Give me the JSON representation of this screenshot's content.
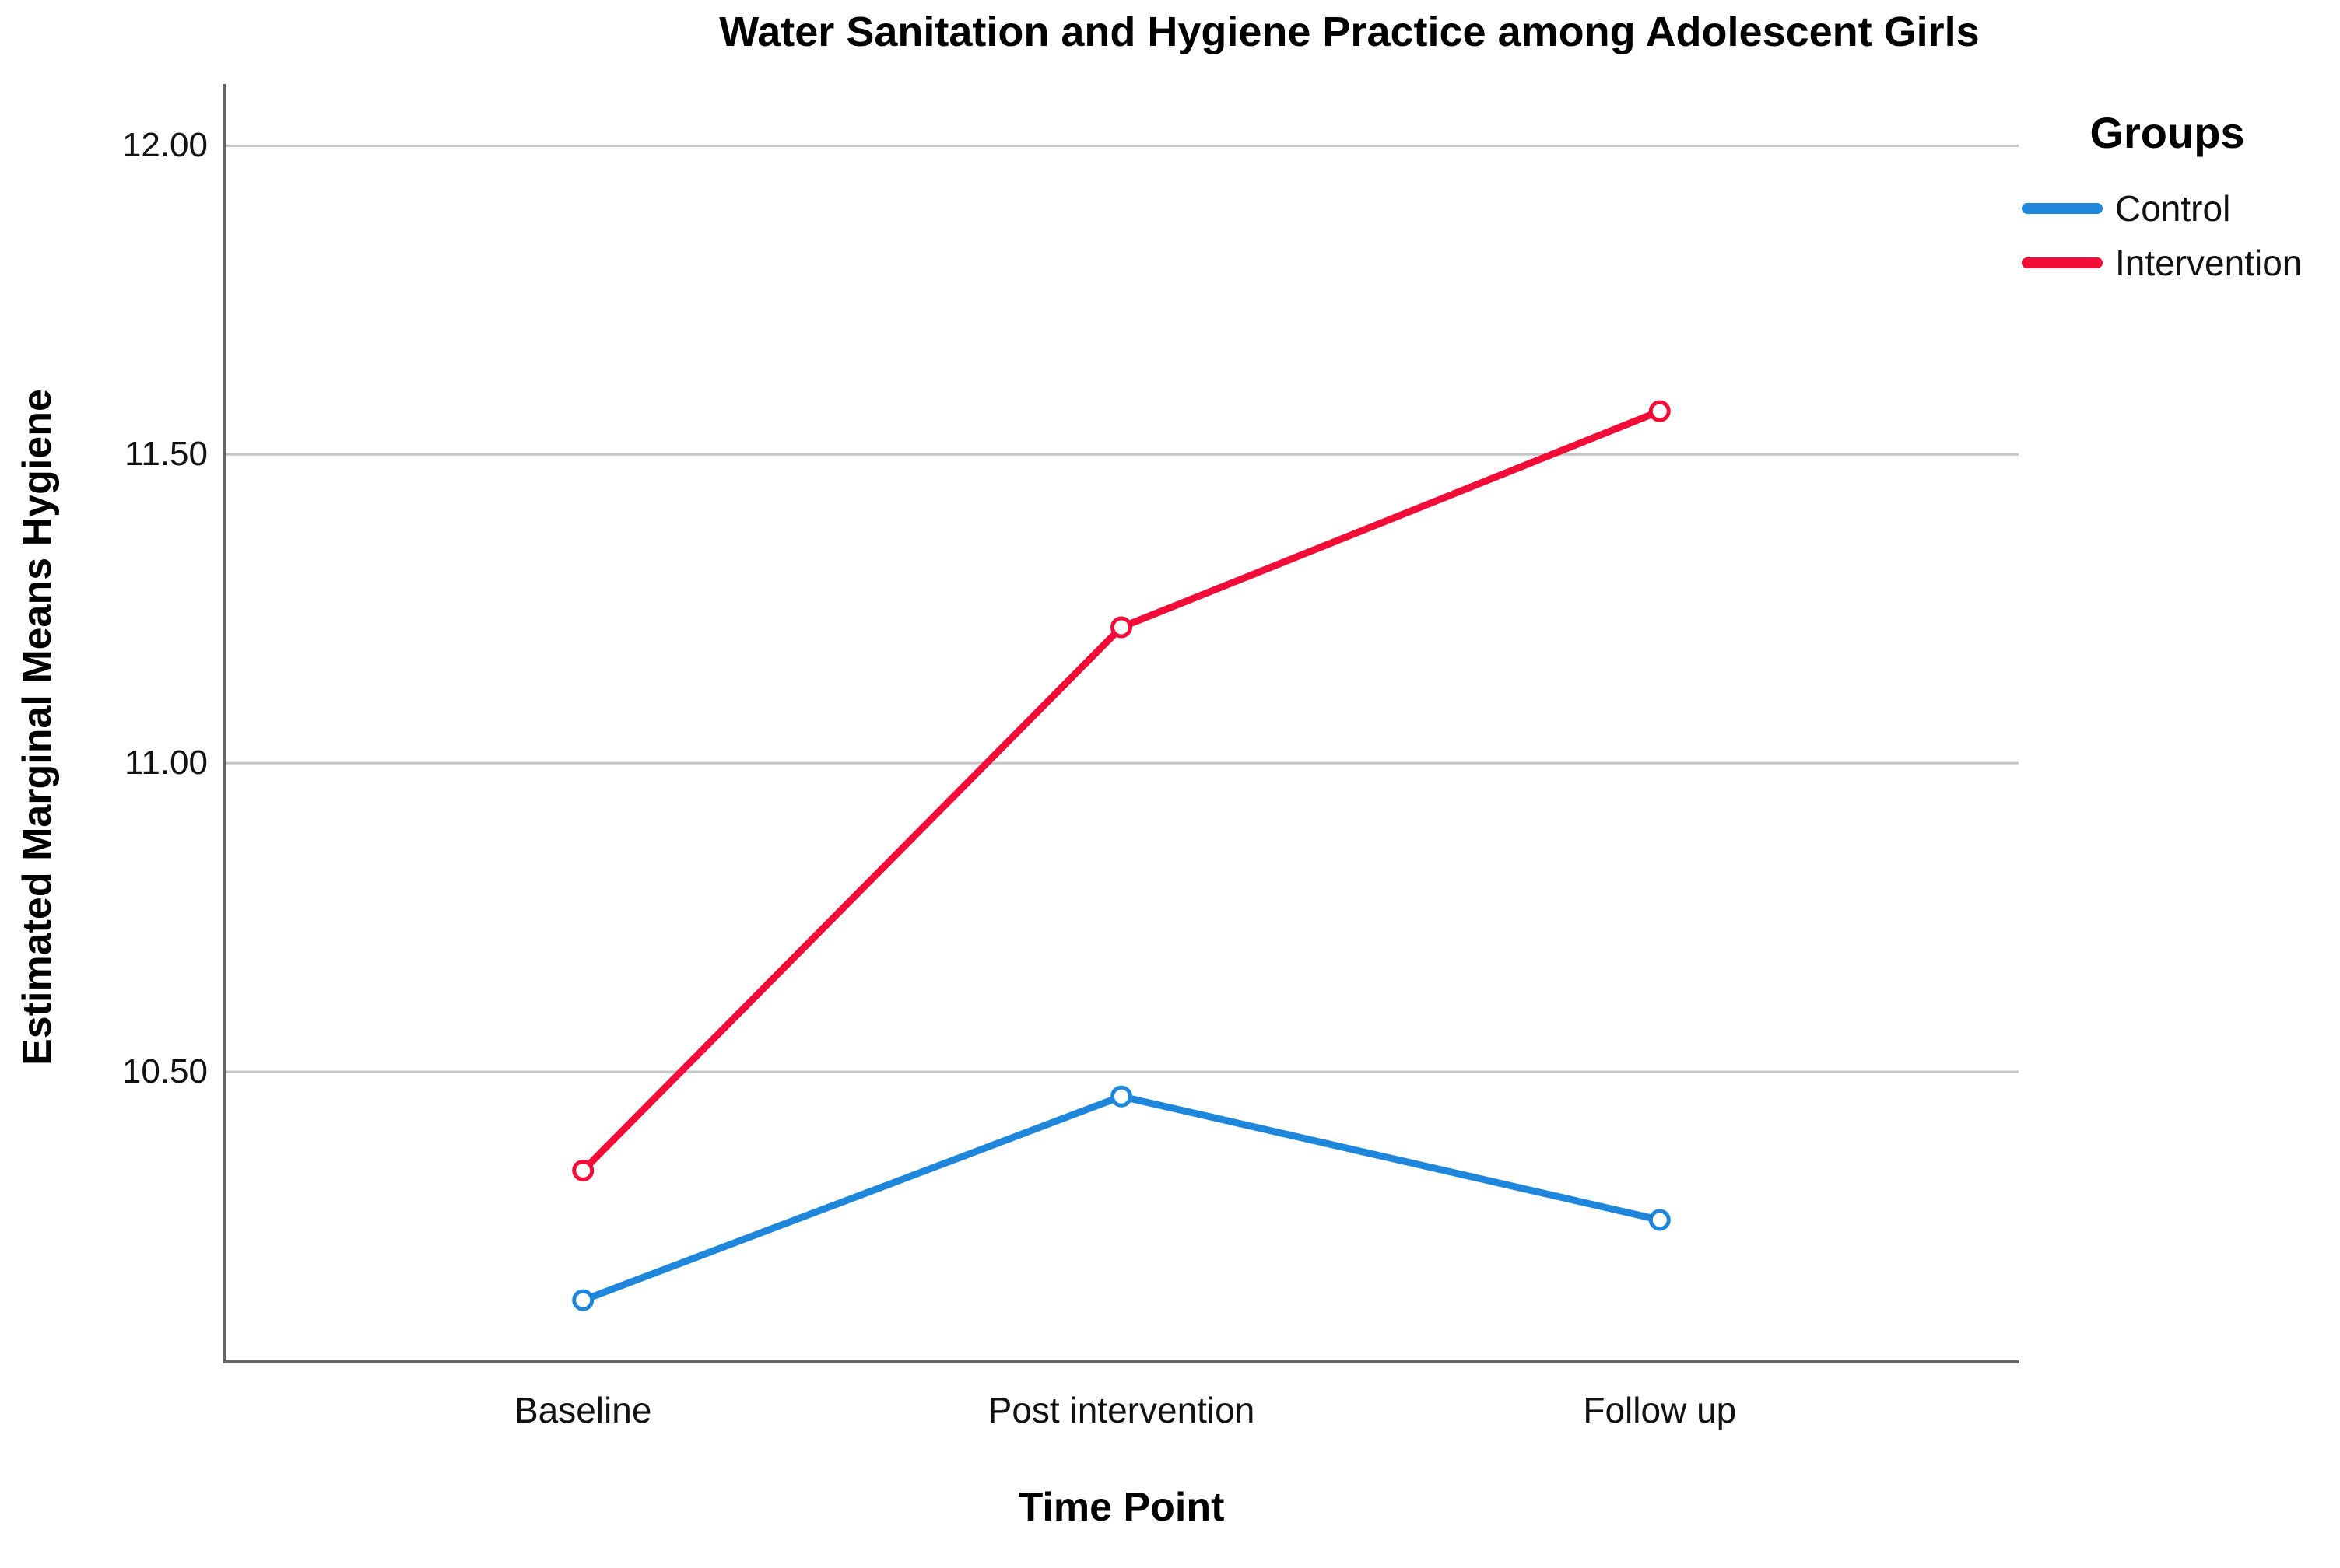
{
  "chart_data": {
    "type": "line",
    "title": "Water Sanitation and Hygiene Practice among Adolescent Girls",
    "xlabel": "Time Point",
    "ylabel": "Estimated Marginal Means Hygiene",
    "categories": [
      "Baseline",
      "Post intervention",
      "Follow up"
    ],
    "series": [
      {
        "name": "Control",
        "color": "#1E87DC",
        "values": [
          10.13,
          10.46,
          10.26
        ]
      },
      {
        "name": "Intervention",
        "color": "#F20C38",
        "values": [
          10.34,
          11.22,
          11.57
        ]
      }
    ],
    "y_ticks": [
      {
        "label": "12.00",
        "value": 12.0
      },
      {
        "label": "11.50",
        "value": 11.5
      },
      {
        "label": "11.00",
        "value": 11.0
      },
      {
        "label": "10.50",
        "value": 10.5
      }
    ],
    "ylim": [
      10.03,
      12.1
    ],
    "grid": "horizontal",
    "marker": "open-circle",
    "legend": {
      "title": "Groups",
      "position": "top-right",
      "entries": [
        "Control",
        "Intervention"
      ]
    },
    "colors": {
      "axis": "#666666",
      "gridline": "#c6c6c6",
      "text": "#000000",
      "background": "#ffffff"
    }
  }
}
